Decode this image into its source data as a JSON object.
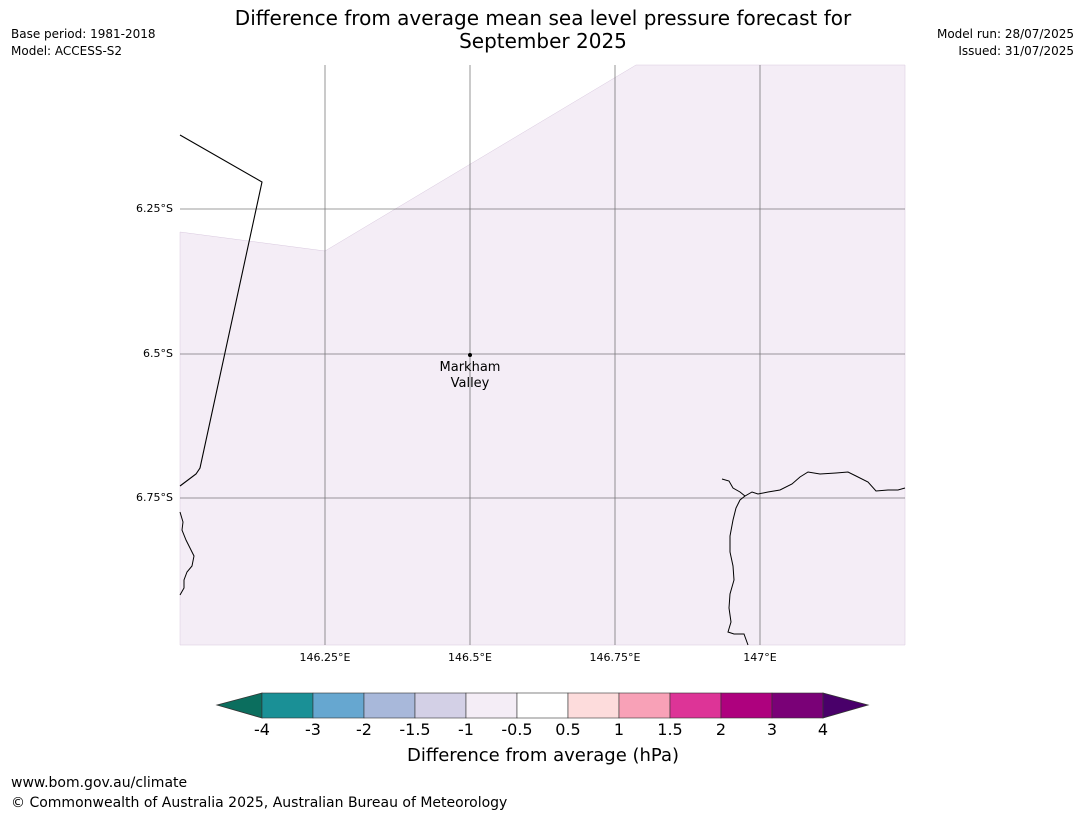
{
  "header": {
    "title_line1": "Difference from average mean sea level pressure forecast for",
    "title_line2": "September 2025",
    "base_period": "Base period: 1981-2018",
    "model": "Model: ACCESS-S2",
    "model_run": "Model run: 28/07/2025",
    "issued": "Issued: 31/07/2025"
  },
  "map": {
    "latitude_labels": [
      "6.25°S",
      "6.5°S",
      "6.75°S"
    ],
    "longitude_labels": [
      "146.25°E",
      "146.5°E",
      "146.75°E",
      "147°E"
    ],
    "place": {
      "name_line1": "Markham",
      "name_line2": "Valley"
    }
  },
  "colorbar": {
    "label": "Difference from average (hPa)",
    "ticks": [
      "-4",
      "-3",
      "-2",
      "-1.5",
      "-1",
      "-0.5",
      "0.5",
      "1",
      "1.5",
      "2",
      "3",
      "4"
    ],
    "colors": [
      "#1a9096",
      "#66a7d0",
      "#a8b8da",
      "#d3d0e6",
      "#f4edf6",
      "#ffffff",
      "#fddcdc",
      "#f8a1b7",
      "#dd3497",
      "#ae017e",
      "#7a0177"
    ],
    "under_color": "#0b6e5e",
    "over_color": "#49006a"
  },
  "footer": {
    "url": "www.bom.gov.au/climate",
    "copyright": "© Commonwealth of Australia 2025, Australian Bureau of Meteorology"
  }
}
